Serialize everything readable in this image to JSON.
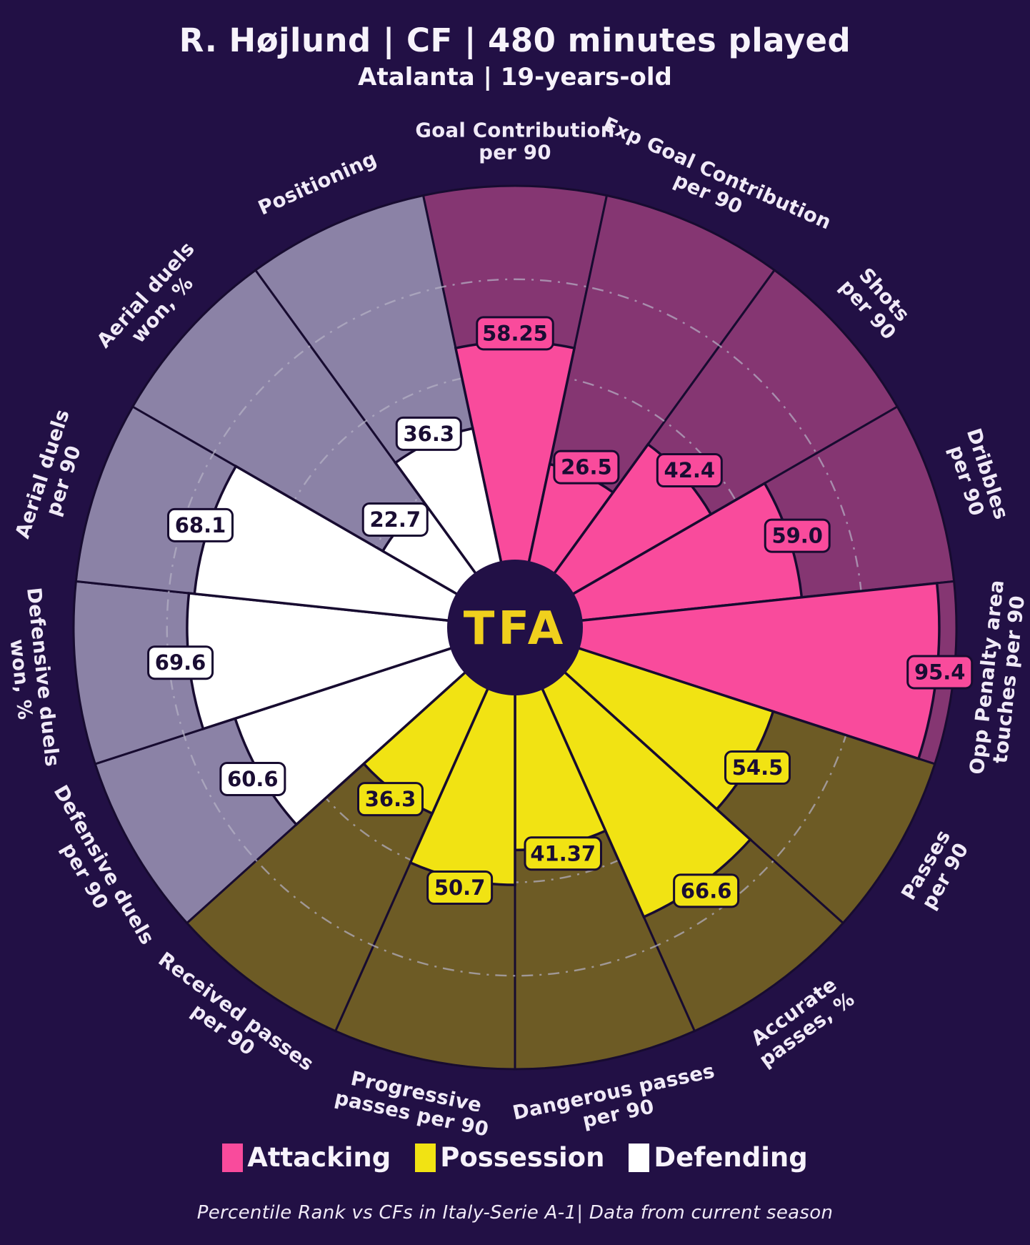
{
  "header": {
    "title": "R. Højlund | CF | 480 minutes played",
    "subtitle": "Atalanta | 19-years-old"
  },
  "logo": {
    "text": "TFA"
  },
  "footer": {
    "note": "Percentile Rank vs CFs in Italy-Serie A-1| Data from current season"
  },
  "colors": {
    "background": "#221045",
    "hole": "#221046",
    "edge": "#170b30",
    "grid": "#b7b2c6",
    "label_text": "#f0eaf7",
    "title_text": "#f7f3fb",
    "badge_text": "#1a0d33",
    "logo_text": "#f0d01d",
    "attacking": "#f94b9c",
    "attacking_bg": "#853672",
    "possession": "#f1e313",
    "possession_bg": "#6d5b25",
    "defending": "#ffffff",
    "defending_bg": "#8b82a6"
  },
  "chart_data": {
    "type": "pizza-radar",
    "title": "R. Højlund | CF | 480 minutes played",
    "subtitle": "Atalanta | 19-years-old",
    "units": "percentile rank 0-100",
    "slice_angle_deg": 24,
    "start_angle_deg": 0,
    "grid": [
      25,
      50,
      75
    ],
    "legend": [
      "Attacking",
      "Possession",
      "Defending"
    ],
    "legend_groups": [
      "attacking",
      "possession",
      "defending"
    ],
    "params": [
      {
        "label": "Goal Contribution per 90",
        "lines": [
          "Goal Contribution",
          "per 90"
        ],
        "value": 58.25,
        "display": "58.25",
        "group": "attacking"
      },
      {
        "label": "Exp Goal Contribution per 90",
        "lines": [
          "Exp Goal Contribution",
          "per 90"
        ],
        "value": 26.5,
        "display": "26.5",
        "group": "attacking"
      },
      {
        "label": "Shots per 90",
        "lines": [
          "Shots",
          "per 90"
        ],
        "value": 42.4,
        "display": "42.4",
        "group": "attacking"
      },
      {
        "label": "Dribbles per 90",
        "lines": [
          "Dribbles",
          "per 90"
        ],
        "value": 59.0,
        "display": "59.0",
        "group": "attacking"
      },
      {
        "label": "Opp Penalty area touches per 90",
        "lines": [
          "Opp Penalty area",
          "touches per 90"
        ],
        "value": 95.4,
        "display": "95.4",
        "group": "attacking"
      },
      {
        "label": "Passes per 90",
        "lines": [
          "Passes",
          "per 90"
        ],
        "value": 54.5,
        "display": "54.5",
        "group": "possession"
      },
      {
        "label": "Accurate passes, %",
        "lines": [
          "Accurate",
          "passes, %"
        ],
        "value": 66.6,
        "display": "66.6",
        "group": "possession"
      },
      {
        "label": "Dangerous passes per 90",
        "lines": [
          "Dangerous passes",
          "per 90"
        ],
        "value": 41.37,
        "display": "41.37",
        "group": "possession"
      },
      {
        "label": "Progressive passes per 90",
        "lines": [
          "Progressive",
          "passes per 90"
        ],
        "value": 50.7,
        "display": "50.7",
        "group": "possession"
      },
      {
        "label": "Received passes per 90",
        "lines": [
          "Received passes",
          "per 90"
        ],
        "value": 36.3,
        "display": "36.3",
        "group": "possession"
      },
      {
        "label": "Defensive duels per 90",
        "lines": [
          "Defensive duels",
          "per 90"
        ],
        "value": 60.6,
        "display": "60.6",
        "group": "defending"
      },
      {
        "label": "Defensive duels won, %",
        "lines": [
          "Defensive duels",
          "won, %"
        ],
        "value": 69.6,
        "display": "69.6",
        "group": "defending"
      },
      {
        "label": "Aerial duels per 90",
        "lines": [
          "Aerial duels",
          "per 90"
        ],
        "value": 68.1,
        "display": "68.1",
        "group": "defending"
      },
      {
        "label": "Aerial duels won, %",
        "lines": [
          "Aerial duels",
          "won, %"
        ],
        "value": 22.7,
        "display": "22.7",
        "group": "defending"
      },
      {
        "label": "Positioning",
        "lines": [
          "Positioning"
        ],
        "value": 36.3,
        "display": "36.3",
        "group": "defending"
      }
    ]
  }
}
